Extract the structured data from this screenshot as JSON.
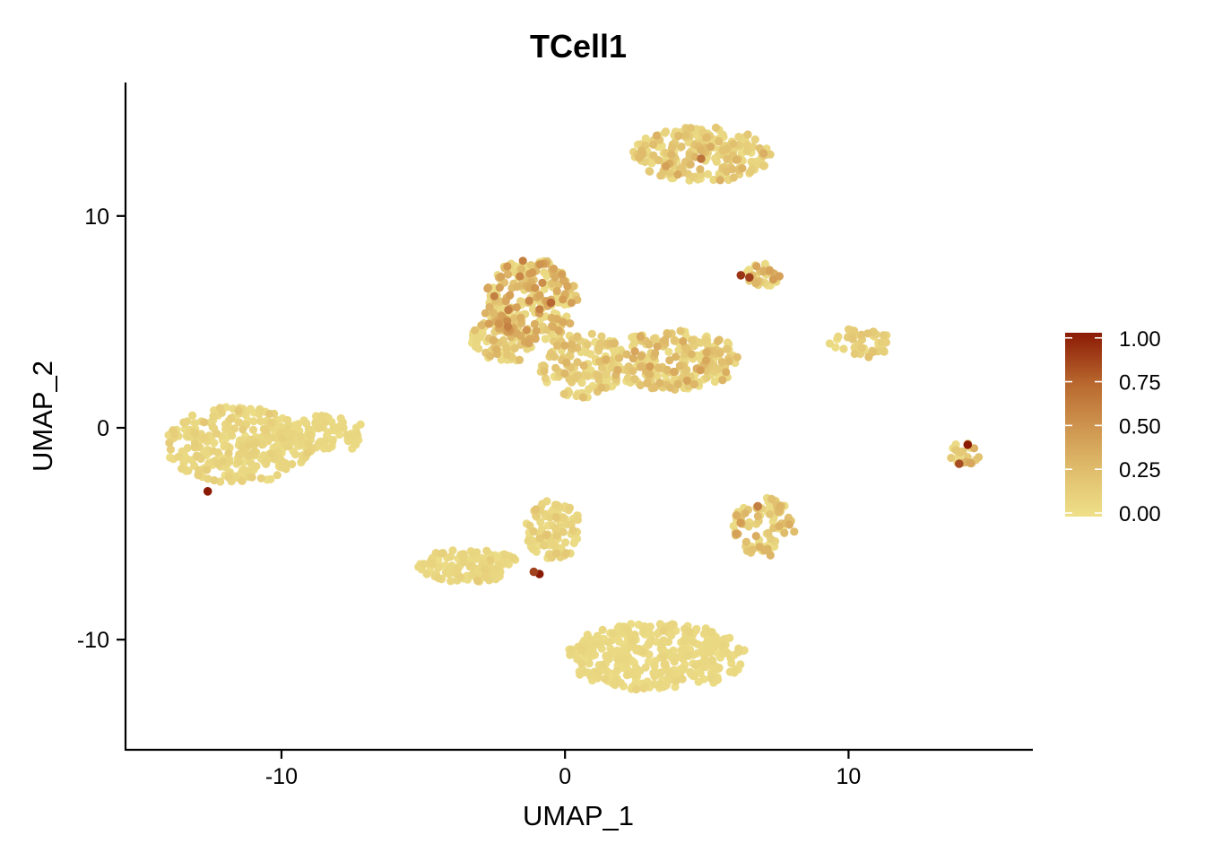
{
  "chart_data": {
    "type": "scatter",
    "title": "TCell1",
    "xlabel": "UMAP_1",
    "ylabel": "UMAP_2",
    "xlim": [
      -15.5,
      16.5
    ],
    "ylim": [
      -15.2,
      16.3
    ],
    "x_ticks": [
      -10,
      0,
      10
    ],
    "x_tick_labels": [
      "-10",
      "0",
      "10"
    ],
    "y_ticks": [
      -10,
      0,
      10
    ],
    "y_tick_labels": [
      "-10",
      "0",
      "10"
    ],
    "grid": false,
    "legend": {
      "position": "right",
      "type": "colorbar",
      "range": [
        0,
        1.05
      ],
      "ticks": [
        0,
        0.25,
        0.5,
        0.75,
        1.0
      ],
      "tick_labels": [
        "0.00",
        "0.25",
        "0.50",
        "0.75",
        "1.00"
      ]
    },
    "color_scale": {
      "low": "#ecdd86",
      "mid": "#d29a52",
      "high": "#8b1a05"
    },
    "clusters": [
      {
        "cx": -11.5,
        "cy": -0.8,
        "rx": 2.6,
        "ry": 1.8,
        "mean": 0.06,
        "count": 300
      },
      {
        "cx": -8.5,
        "cy": -0.3,
        "rx": 1.6,
        "ry": 0.9,
        "mean": 0.03,
        "count": 80
      },
      {
        "cx": -1.2,
        "cy": 6.0,
        "rx": 1.7,
        "ry": 2.0,
        "mean": 0.28,
        "count": 250
      },
      {
        "cx": -2.2,
        "cy": 4.2,
        "rx": 1.1,
        "ry": 1.2,
        "mean": 0.2,
        "count": 70
      },
      {
        "cx": 0.6,
        "cy": 3.0,
        "rx": 1.5,
        "ry": 1.6,
        "mean": 0.14,
        "count": 140
      },
      {
        "cx": 3.8,
        "cy": 3.2,
        "rx": 2.4,
        "ry": 1.4,
        "mean": 0.18,
        "count": 230
      },
      {
        "cx": 4.8,
        "cy": 12.9,
        "rx": 2.5,
        "ry": 1.3,
        "mean": 0.14,
        "count": 230
      },
      {
        "cx": 7.0,
        "cy": 7.2,
        "rx": 0.6,
        "ry": 0.6,
        "mean": 0.25,
        "count": 35
      },
      {
        "cx": 10.4,
        "cy": 4.0,
        "rx": 1.1,
        "ry": 0.7,
        "mean": 0.1,
        "count": 45
      },
      {
        "cx": 14.1,
        "cy": -1.2,
        "rx": 0.55,
        "ry": 0.55,
        "mean": 0.2,
        "count": 22
      },
      {
        "cx": 7.0,
        "cy": -4.7,
        "rx": 1.1,
        "ry": 1.4,
        "mean": 0.18,
        "count": 90
      },
      {
        "cx": 3.2,
        "cy": -10.8,
        "rx": 3.2,
        "ry": 1.6,
        "mean": 0.03,
        "count": 350
      },
      {
        "cx": -3.4,
        "cy": -6.5,
        "rx": 1.8,
        "ry": 0.8,
        "mean": 0.05,
        "count": 120
      },
      {
        "cx": -0.4,
        "cy": -4.8,
        "rx": 1.0,
        "ry": 1.4,
        "mean": 0.08,
        "count": 90
      }
    ],
    "highlight_points": [
      {
        "x": -12.6,
        "y": -3.0,
        "value": 1.0
      },
      {
        "x": -0.9,
        "y": -6.9,
        "value": 1.0
      },
      {
        "x": -1.1,
        "y": -6.8,
        "value": 0.85
      },
      {
        "x": 6.2,
        "y": 7.2,
        "value": 0.9
      },
      {
        "x": 6.5,
        "y": 7.1,
        "value": 0.85
      },
      {
        "x": 14.2,
        "y": -0.8,
        "value": 1.0
      },
      {
        "x": 13.9,
        "y": -1.7,
        "value": 0.8
      },
      {
        "x": -0.5,
        "y": 5.9,
        "value": 0.7
      },
      {
        "x": 4.8,
        "y": 12.7,
        "value": 0.65
      },
      {
        "x": 6.8,
        "y": -3.7,
        "value": 0.6
      }
    ]
  }
}
